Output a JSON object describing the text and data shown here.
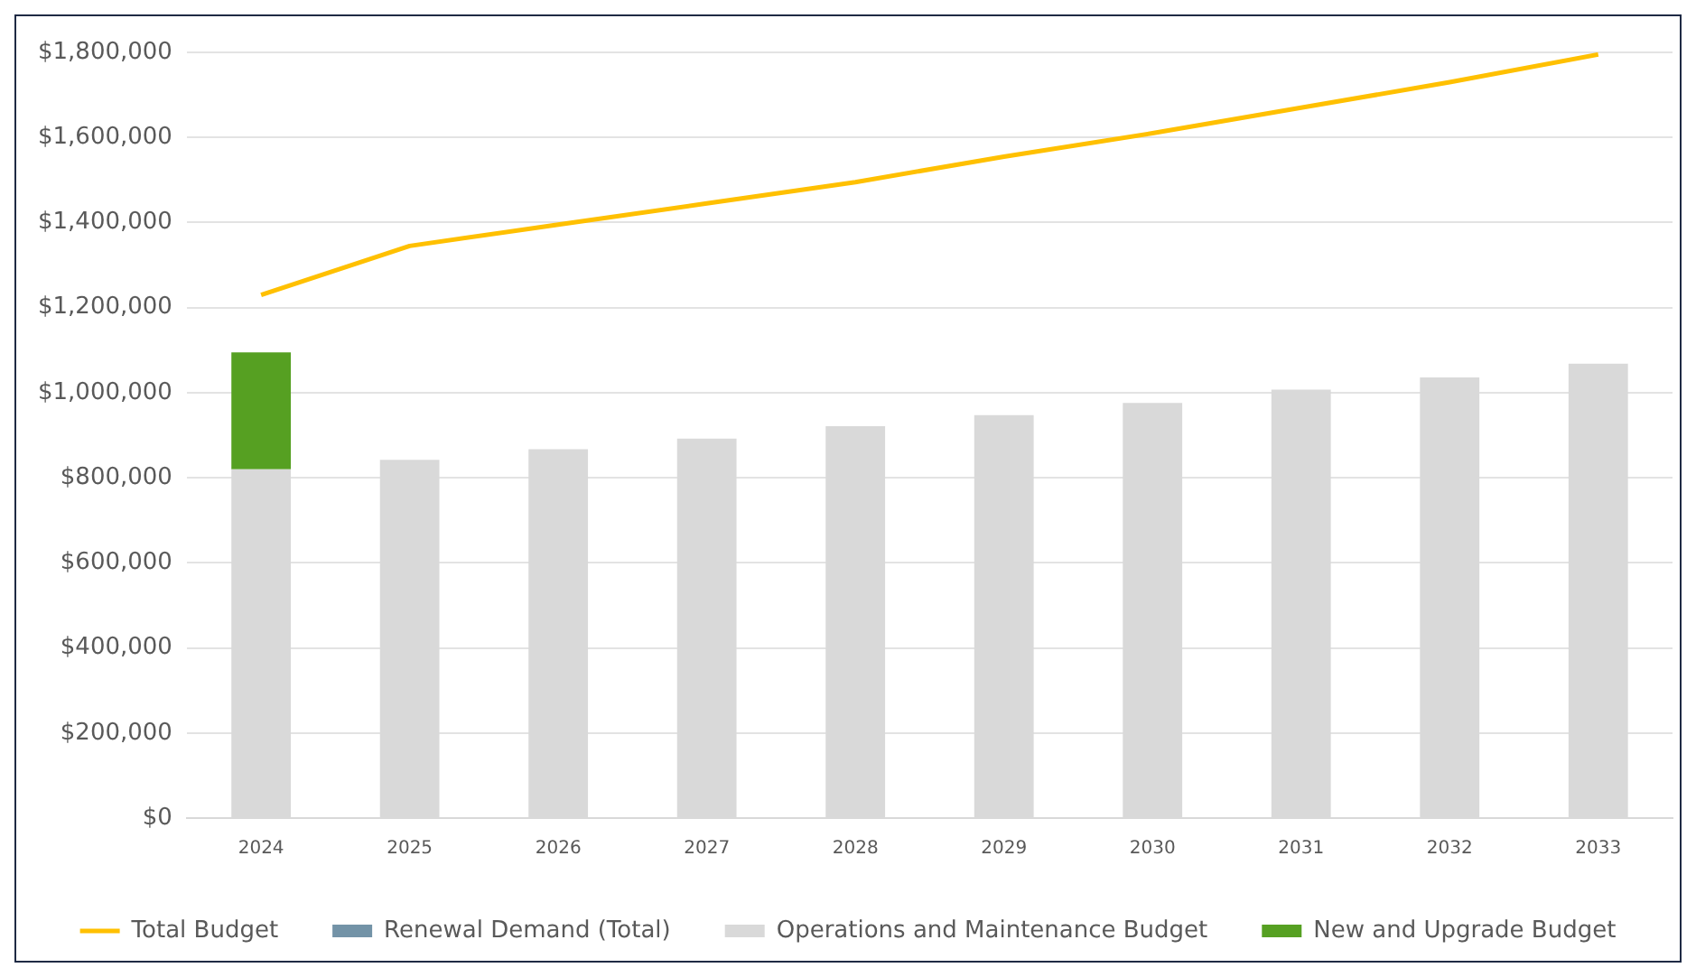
{
  "chart_data": {
    "type": "bar",
    "stacked": true,
    "categories": [
      "2024",
      "2025",
      "2026",
      "2027",
      "2028",
      "2029",
      "2030",
      "2031",
      "2032",
      "2033"
    ],
    "series": [
      {
        "name": "Renewal Demand (Total)",
        "color": "#7393a7",
        "values": [
          null,
          null,
          null,
          null,
          null,
          null,
          null,
          null,
          null,
          null
        ]
      },
      {
        "name": "Operations and Maintenance Budget",
        "color": "#d9d9d9",
        "values": [
          820000,
          842000,
          867000,
          892000,
          921000,
          947000,
          976000,
          1007000,
          1036000,
          1068000
        ]
      },
      {
        "name": "New and Upgrade Budget",
        "color": "#56a022",
        "values": [
          275000,
          null,
          null,
          null,
          null,
          null,
          null,
          null,
          null,
          null
        ]
      },
      {
        "name": "Total Budget",
        "type": "line",
        "color": "#ffc000",
        "values": [
          1230000,
          1345000,
          1395000,
          1445000,
          1495000,
          1555000,
          1610000,
          1670000,
          1730000,
          1795000
        ]
      }
    ],
    "ylim": [
      0,
      1800000
    ],
    "yticks": [
      {
        "value": 0,
        "label": "$0"
      },
      {
        "value": 200000,
        "label": "$200,000"
      },
      {
        "value": 400000,
        "label": "$400,000"
      },
      {
        "value": 600000,
        "label": "$600,000"
      },
      {
        "value": 800000,
        "label": "$800,000"
      },
      {
        "value": 1000000,
        "label": "$1,000,000"
      },
      {
        "value": 1200000,
        "label": "$1,200,000"
      },
      {
        "value": 1400000,
        "label": "$1,400,000"
      },
      {
        "value": 1600000,
        "label": "$1,600,000"
      },
      {
        "value": 1800000,
        "label": "$1,800,000"
      }
    ],
    "grid": "y",
    "legend": "bottom",
    "marker": "none",
    "line_style": "solid"
  }
}
